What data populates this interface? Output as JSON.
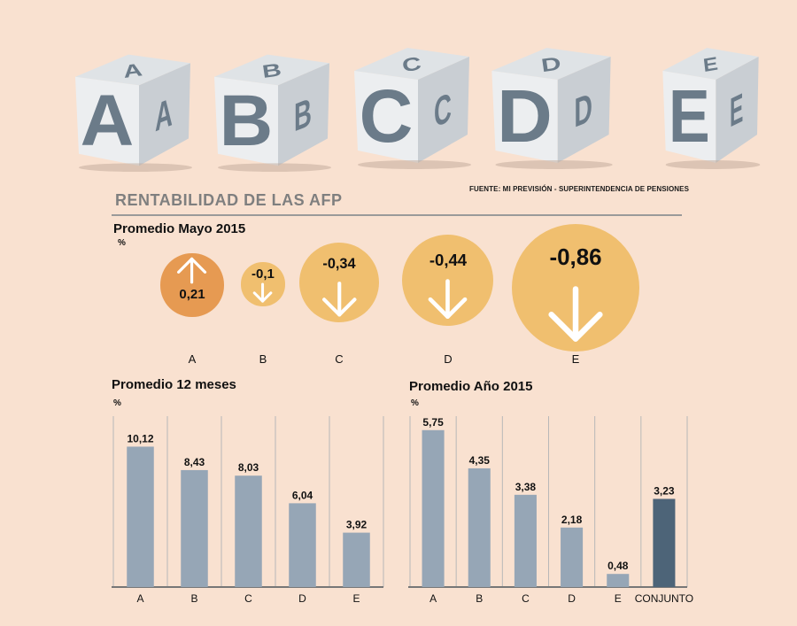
{
  "cubes": [
    {
      "letter": "A",
      "side": "A",
      "top": "A"
    },
    {
      "letter": "B",
      "side": "B",
      "top": "B"
    },
    {
      "letter": "C",
      "side": "C",
      "top": "C"
    },
    {
      "letter": "D",
      "side": "D",
      "top": "D"
    },
    {
      "letter": "E",
      "side": "E",
      "top": "E"
    }
  ],
  "source": "FUENTE: MI PREVISIÓN - SUPERINTENDENCIA DE PENSIONES",
  "title": "RENTABILIDAD DE LAS AFP",
  "colors": {
    "up": "#e69a52",
    "down": "#f0bf6f",
    "bar": "#96a6b6",
    "bar_highlight": "#4d6478",
    "axis": "#777777",
    "grid": "#b8b8b8"
  },
  "chart_data": [
    {
      "type": "bubble",
      "title": "Promedio Mayo 2015",
      "unit": "%",
      "categories": [
        "A",
        "B",
        "C",
        "D",
        "E"
      ],
      "values": [
        0.21,
        -0.1,
        -0.34,
        -0.44,
        -0.86
      ],
      "labels": [
        "0,21",
        "-0,1",
        "-0,34",
        "-0,44",
        "-0,86"
      ]
    },
    {
      "type": "bar",
      "title": "Promedio 12 meses",
      "unit": "%",
      "categories": [
        "A",
        "B",
        "C",
        "D",
        "E"
      ],
      "values": [
        10.12,
        8.43,
        8.03,
        6.04,
        3.92
      ],
      "labels": [
        "10,12",
        "8,43",
        "8,03",
        "6,04",
        "3,92"
      ],
      "ylim": [
        0,
        12
      ]
    },
    {
      "type": "bar",
      "title": "Promedio Año 2015",
      "unit": "%",
      "categories": [
        "A",
        "B",
        "C",
        "D",
        "E",
        "CONJUNTO"
      ],
      "values": [
        5.75,
        4.35,
        3.38,
        2.18,
        0.48,
        3.23
      ],
      "labels": [
        "5,75",
        "4,35",
        "3,38",
        "2,18",
        "0,48",
        "3,23"
      ],
      "ylim": [
        0,
        6.1
      ]
    }
  ]
}
